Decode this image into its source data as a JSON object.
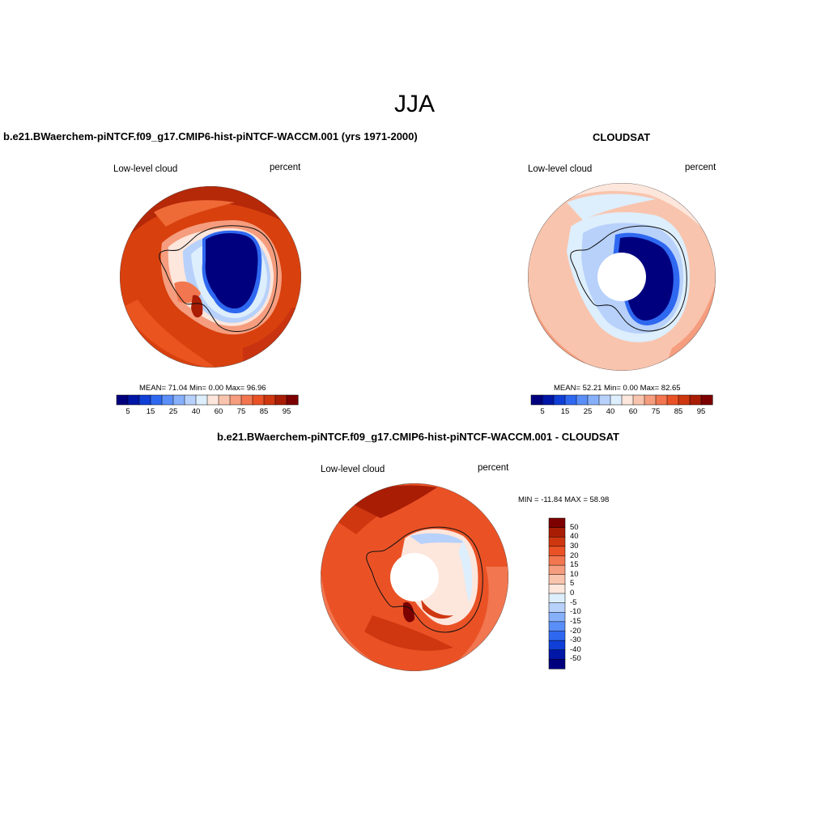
{
  "figure": {
    "title": "JJA"
  },
  "panels": [
    {
      "id": "model",
      "title": "b.e21.BWaerchem-piNTCF.f09_g17.CMIP6-hist-piNTCF-WACCM.001 (yrs 1971-2000)",
      "left_label": "Low-level cloud",
      "right_label": "percent",
      "stats": "MEAN=  71.04  Min=    0.00  Max=  96.96",
      "colorbar": {
        "levels": [
          5,
          10,
          15,
          20,
          25,
          30,
          40,
          50,
          60,
          65,
          75,
          80,
          85,
          90,
          95
        ],
        "tick_labels": [
          "5",
          "15",
          "25",
          "40",
          "60",
          "75",
          "85",
          "95"
        ]
      }
    },
    {
      "id": "obs",
      "title": "CLOUDSAT",
      "left_label": "Low-level cloud",
      "right_label": "percent",
      "stats": "MEAN=  52.21  Min=    0.00  Max=  82.65",
      "colorbar": {
        "levels": [
          5,
          10,
          15,
          20,
          25,
          30,
          40,
          50,
          60,
          65,
          75,
          80,
          85,
          90,
          95
        ],
        "tick_labels": [
          "5",
          "15",
          "25",
          "40",
          "60",
          "75",
          "85",
          "95"
        ]
      }
    },
    {
      "id": "diff",
      "title": "b.e21.BWaerchem-piNTCF.f09_g17.CMIP6-hist-piNTCF-WACCM.001 - CLOUDSAT",
      "left_label": "Low-level cloud",
      "right_label": "percent",
      "stats": "MIN = -11.84 MAX =  58.98",
      "colorbar": {
        "tick_labels": [
          "50",
          "40",
          "30",
          "20",
          "15",
          "10",
          "5",
          "0",
          "-5",
          "-10",
          "-15",
          "-20",
          "-30",
          "-40",
          "-50"
        ]
      }
    }
  ],
  "palette": {
    "seq16": [
      "#00007f",
      "#0016a6",
      "#0f3fd6",
      "#2f68f0",
      "#5a8ef8",
      "#87b0fb",
      "#b7d1fb",
      "#ddeefc",
      "#fde6dc",
      "#f9c4ad",
      "#f59d7e",
      "#f2764f",
      "#ea5226",
      "#cf3710",
      "#a91d05",
      "#7d0000"
    ],
    "diff16": [
      "#7d0000",
      "#a91d05",
      "#cf3710",
      "#ea5226",
      "#f2764f",
      "#f59d7e",
      "#f9c4ad",
      "#fde6dc",
      "#ddeefc",
      "#b7d1fb",
      "#87b0fb",
      "#5a8ef8",
      "#2f68f0",
      "#0f3fd6",
      "#0016a6",
      "#00007f"
    ]
  }
}
